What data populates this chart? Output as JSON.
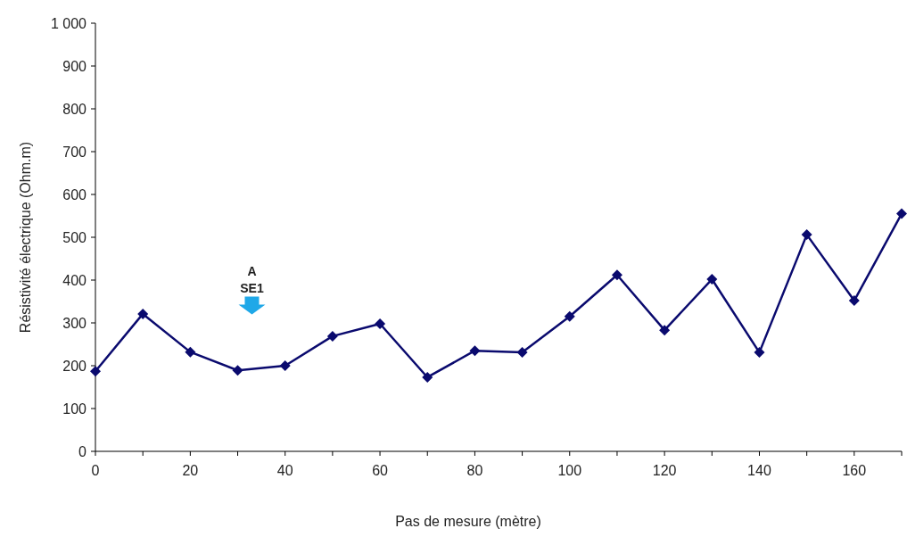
{
  "chart_data": {
    "type": "line",
    "xlabel": "Pas de mesure (mètre)",
    "ylabel": "Résistivité électrique (Ohm.m)",
    "x": [
      0,
      10,
      20,
      30,
      40,
      50,
      60,
      70,
      80,
      90,
      100,
      110,
      120,
      130,
      140,
      150,
      160,
      170
    ],
    "series": [
      {
        "color": "#0a0a6e",
        "values": [
          187,
          321,
          232,
          189,
          200,
          269,
          298,
          173,
          235,
          231,
          315,
          412,
          283,
          402,
          231,
          506,
          352,
          555
        ]
      }
    ],
    "xlim": [
      0,
      170
    ],
    "xticks": [
      0,
      20,
      40,
      60,
      80,
      100,
      120,
      140,
      160
    ],
    "ylim": [
      0,
      1000
    ],
    "yticks": [
      0,
      100,
      200,
      300,
      400,
      500,
      600,
      700,
      800,
      900,
      {
        "value": 1000,
        "label": "1 000"
      }
    ],
    "marker": "diamond",
    "line_style": "solid",
    "grid": false,
    "annotations": [
      "A\nSE1"
    ]
  }
}
